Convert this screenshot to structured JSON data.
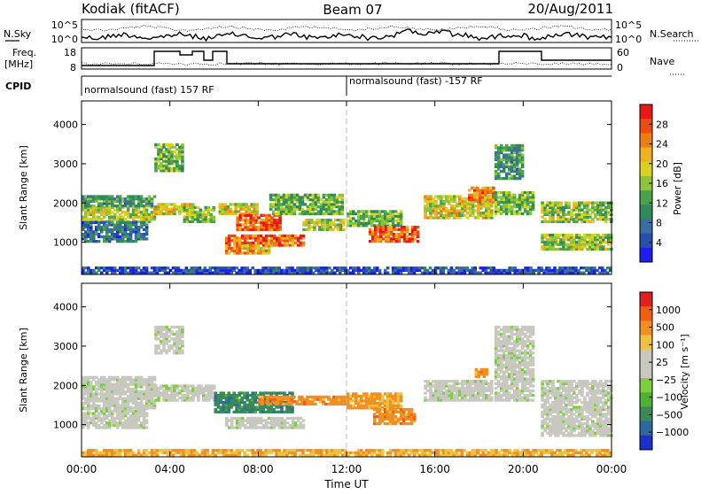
{
  "header": {
    "station": "Kodiak (fitACF)",
    "beam": "Beam 07",
    "date": "20/Aug/2011"
  },
  "top_panels": {
    "nsky_label": "N.Sky",
    "nsky_ticks": [
      "10^5",
      "10^0"
    ],
    "nsearch_label": "N.Search",
    "nsearch_ticks": [
      "10^5",
      "10^0"
    ],
    "freq_label_line1": "Freq.",
    "freq_label_line2": "[MHz]",
    "freq_ticks": [
      "18",
      "8"
    ],
    "nave_label": "Nave",
    "nave_ticks": [
      "60",
      "0"
    ],
    "cpid_label": "CPID",
    "cpid_segments": [
      {
        "text": "normalsound (fast) 157 RF",
        "start_hour": 0
      },
      {
        "text": "normalsound (fast) -157 RF",
        "start_hour": 12
      }
    ]
  },
  "chart_data": [
    {
      "type": "heatmap",
      "name": "power",
      "ylabel": "Slant Range [km]",
      "xlabel": "",
      "x_ticks": [
        "00:00",
        "04:00",
        "08:00",
        "12:00",
        "16:00",
        "20:00",
        "00:00"
      ],
      "x_range_hours": [
        0,
        24
      ],
      "y_ticks": [
        1000,
        2000,
        3000,
        4000
      ],
      "y_range": [
        180,
        4600
      ],
      "colorbar": {
        "label": "Power [dB]",
        "ticks": [
          "4",
          "8",
          "12",
          "16",
          "20",
          "24",
          "28"
        ],
        "colors": [
          "#1e1ef0",
          "#2850a8",
          "#3a6ea0",
          "#2f8a5a",
          "#4aa24a",
          "#8cc43c",
          "#d6d420",
          "#f0b020",
          "#f07d10",
          "#f04a10",
          "#e81818"
        ]
      },
      "regions": [
        {
          "t0": 0.0,
          "t1": 3.3,
          "r0": 1500,
          "r1": 1900,
          "level": 0.55
        },
        {
          "t0": 0.0,
          "t1": 3.3,
          "r0": 1900,
          "r1": 2200,
          "level": 0.35
        },
        {
          "t0": 0.0,
          "t1": 3.0,
          "r0": 1000,
          "r1": 1500,
          "level": 0.25
        },
        {
          "t0": 3.3,
          "t1": 4.6,
          "r0": 2800,
          "r1": 3500,
          "level": 0.45
        },
        {
          "t0": 3.3,
          "t1": 5.0,
          "r0": 1700,
          "r1": 2000,
          "level": 0.6
        },
        {
          "t0": 4.6,
          "t1": 6.0,
          "r0": 1500,
          "r1": 1900,
          "level": 0.5
        },
        {
          "t0": 6.2,
          "t1": 8.0,
          "r0": 1700,
          "r1": 2000,
          "level": 0.6
        },
        {
          "t0": 7.0,
          "t1": 9.0,
          "r0": 1300,
          "r1": 1700,
          "level": 0.85
        },
        {
          "t0": 6.5,
          "t1": 10.0,
          "r0": 900,
          "r1": 1200,
          "level": 0.8
        },
        {
          "t0": 6.5,
          "t1": 8.5,
          "r0": 700,
          "r1": 900,
          "level": 0.7
        },
        {
          "t0": 8.5,
          "t1": 11.8,
          "r0": 1700,
          "r1": 2200,
          "level": 0.45
        },
        {
          "t0": 10.0,
          "t1": 11.8,
          "r0": 1300,
          "r1": 1600,
          "level": 0.55
        },
        {
          "t0": 12.0,
          "t1": 14.5,
          "r0": 1400,
          "r1": 1800,
          "level": 0.45
        },
        {
          "t0": 13.0,
          "t1": 15.2,
          "r0": 1000,
          "r1": 1400,
          "level": 0.85
        },
        {
          "t0": 15.5,
          "t1": 18.6,
          "r0": 1600,
          "r1": 2200,
          "level": 0.6
        },
        {
          "t0": 17.5,
          "t1": 18.6,
          "r0": 2000,
          "r1": 2400,
          "level": 0.75
        },
        {
          "t0": 18.7,
          "t1": 20.0,
          "r0": 2600,
          "r1": 3500,
          "level": 0.35
        },
        {
          "t0": 18.7,
          "t1": 20.5,
          "r0": 1700,
          "r1": 2300,
          "level": 0.45
        },
        {
          "t0": 20.8,
          "t1": 24.0,
          "r0": 1500,
          "r1": 2000,
          "level": 0.5
        },
        {
          "t0": 20.8,
          "t1": 24.0,
          "r0": 800,
          "r1": 1200,
          "level": 0.5
        },
        {
          "t0": 0.0,
          "t1": 24.0,
          "r0": 200,
          "r1": 350,
          "level": 0.15
        }
      ]
    },
    {
      "type": "heatmap",
      "name": "velocity",
      "ylabel": "Slant Range [km]",
      "xlabel": "Time UT",
      "x_ticks": [
        "00:00",
        "04:00",
        "08:00",
        "12:00",
        "16:00",
        "20:00",
        "00:00"
      ],
      "x_range_hours": [
        0,
        24
      ],
      "y_ticks": [
        1000,
        2000,
        3000,
        4000
      ],
      "y_range": [
        180,
        4600
      ],
      "colorbar": {
        "label": "Velocity [m s⁻¹]",
        "ticks": [
          "1000",
          "500",
          "100",
          "25",
          "−25",
          "−100",
          "−500",
          "−1000"
        ],
        "colors": [
          "#1a30c8",
          "#2a6aa0",
          "#3a8a58",
          "#50b030",
          "#7cd040",
          "#c8c8c0",
          "#c8c8c0",
          "#f0c040",
          "#f09020",
          "#f06010",
          "#e02020"
        ]
      },
      "regions": [
        {
          "t0": 0.0,
          "t1": 3.3,
          "r0": 1400,
          "r1": 2200,
          "level": 0.5
        },
        {
          "t0": 0.0,
          "t1": 3.0,
          "r0": 900,
          "r1": 1400,
          "level": 0.5
        },
        {
          "t0": 3.3,
          "t1": 4.6,
          "r0": 2800,
          "r1": 3500,
          "level": 0.5
        },
        {
          "t0": 3.3,
          "t1": 6.0,
          "r0": 1600,
          "r1": 2000,
          "level": 0.5
        },
        {
          "t0": 6.0,
          "t1": 9.5,
          "r0": 1300,
          "r1": 1800,
          "level": 0.22
        },
        {
          "t0": 6.5,
          "t1": 10.0,
          "r0": 900,
          "r1": 1200,
          "level": 0.5
        },
        {
          "t0": 8.0,
          "t1": 12.0,
          "r0": 1500,
          "r1": 1700,
          "level": 0.78
        },
        {
          "t0": 12.0,
          "t1": 14.5,
          "r0": 1400,
          "r1": 1800,
          "level": 0.75
        },
        {
          "t0": 13.2,
          "t1": 15.0,
          "r0": 1000,
          "r1": 1400,
          "level": 0.78
        },
        {
          "t0": 15.5,
          "t1": 18.6,
          "r0": 1600,
          "r1": 2100,
          "level": 0.5
        },
        {
          "t0": 17.8,
          "t1": 18.4,
          "r0": 2200,
          "r1": 2400,
          "level": 0.78
        },
        {
          "t0": 18.7,
          "t1": 20.5,
          "r0": 1600,
          "r1": 3500,
          "level": 0.5
        },
        {
          "t0": 20.8,
          "t1": 24.0,
          "r0": 700,
          "r1": 2100,
          "level": 0.5
        },
        {
          "t0": 0.0,
          "t1": 24.0,
          "r0": 200,
          "r1": 350,
          "level": 0.72
        }
      ]
    }
  ]
}
